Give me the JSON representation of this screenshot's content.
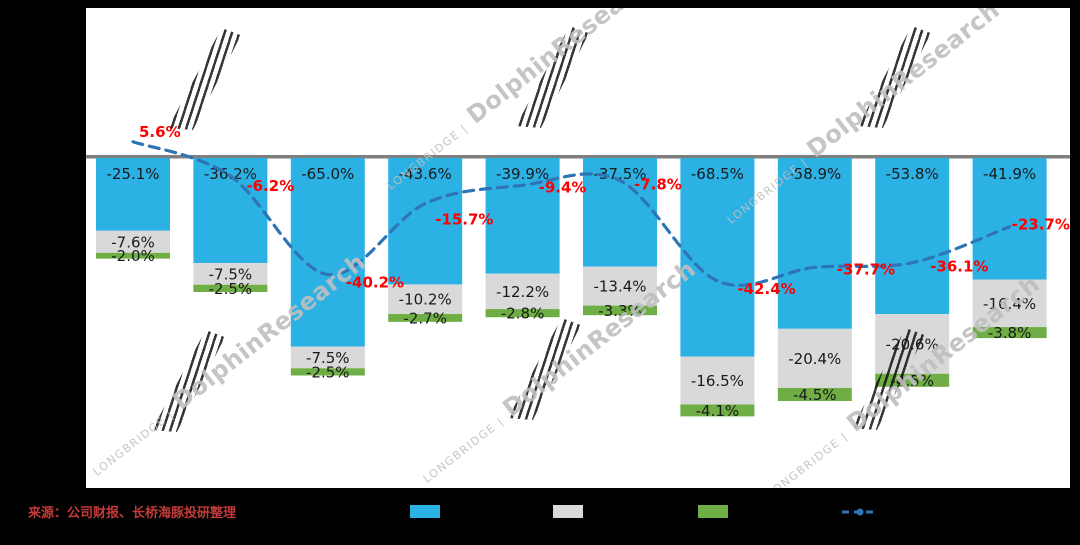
{
  "watermark": {
    "small": "LONGBRIDGE |",
    "large": "DolphinResearch"
  },
  "footer": {
    "source": "来源：公司财报、长桥海豚投研整理",
    "legend": [
      {
        "label": "",
        "color": "#2CB1E5"
      },
      {
        "label": "",
        "color": "#D9D9D9"
      },
      {
        "label": "",
        "color": "#6FAE44"
      },
      {
        "label": "",
        "color": "#2E75B6",
        "type": "dashed-line"
      }
    ]
  },
  "chart_data": {
    "type": "bar",
    "subtype": "stacked-columns-with-dashed-line",
    "categories": [
      "",
      "",
      "",
      "",
      "",
      "",
      "",
      "",
      "",
      ""
    ],
    "baseline_color": "#7F7F7F",
    "label_color": "#1A1A1A",
    "series": [
      {
        "name": "blue-segment",
        "color": "#2CB1E5",
        "values": [
          -25.1,
          -36.2,
          -65.0,
          -43.6,
          -39.9,
          -37.5,
          -68.5,
          -58.9,
          -53.8,
          -41.9
        ],
        "labels": [
          "-25.1%",
          "-36.2%",
          "-65.0%",
          "-43.6%",
          "-39.9%",
          "-37.5%",
          "-68.5%",
          "-58.9%",
          "-53.8%",
          "-41.9%"
        ]
      },
      {
        "name": "gray-segment",
        "color": "#D9D9D9",
        "values": [
          -7.6,
          -7.5,
          -7.5,
          -10.2,
          -12.2,
          -13.4,
          -16.5,
          -20.4,
          -20.6,
          -16.4
        ],
        "labels": [
          "-7.6%",
          "-7.5%",
          "-7.5%",
          "-10.2%",
          "-12.2%",
          "-13.4%",
          "-16.5%",
          "-20.4%",
          "-20.6%",
          "-16.4%"
        ]
      },
      {
        "name": "green-segment",
        "color": "#6FAE44",
        "values": [
          -2.0,
          -2.5,
          -2.5,
          -2.7,
          -2.8,
          -3.3,
          -4.1,
          -4.5,
          -4.5,
          -3.8
        ],
        "labels": [
          "-2.0%",
          "-2.5%",
          "-2.5%",
          "-2.7%",
          "-2.8%",
          "-3.3%",
          "-4.1%",
          "-4.5%",
          "-4.5%",
          "-3.8%"
        ]
      }
    ],
    "line": {
      "name": "growth-line",
      "color": "#2E75B6",
      "label_color": "#FF0000",
      "values": [
        5.6,
        -6.2,
        -40.2,
        -15.7,
        -9.4,
        -7.8,
        -42.4,
        -37.7,
        -36.1,
        -23.7
      ],
      "labels": [
        "5.6%",
        "-6.2%",
        "-40.2%",
        "-15.7%",
        "-9.4%",
        "-7.8%",
        "-42.4%",
        "-37.7%",
        "-36.1%",
        "-23.7%"
      ]
    },
    "ylim": [
      -95,
      10
    ],
    "grid": false,
    "legend_position": "bottom"
  }
}
